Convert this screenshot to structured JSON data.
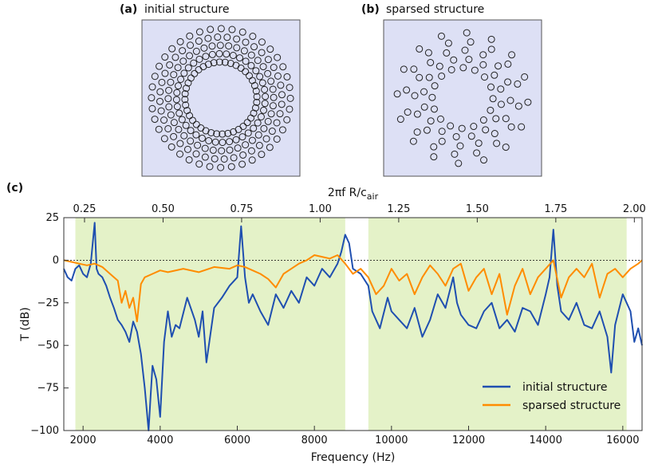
{
  "panels": {
    "a": {
      "label": "(a)",
      "title": "initial structure"
    },
    "b": {
      "label": "(b)",
      "title": "sparsed structure"
    },
    "c": {
      "label": "(c)"
    }
  },
  "colors": {
    "structure_bg": "#dde0f5",
    "bandgap": "#e4f2c8",
    "initial": "#1f4fb0",
    "sparsed": "#ff8c00",
    "zero_line": "#000000"
  },
  "chart_data": {
    "type": "line",
    "title": "",
    "xlabel": "Frequency (Hz)",
    "ylabel": "T (dB)",
    "top_xlabel": "2πf R/c",
    "top_xlabel_sub": "air",
    "xlim": [
      1500,
      16500
    ],
    "ylim": [
      -100,
      25
    ],
    "x_ticks": [
      2000,
      4000,
      6000,
      8000,
      10000,
      12000,
      14000,
      16000
    ],
    "x_tick_labels": [
      "2000",
      "4000",
      "6000",
      "8000",
      "10000",
      "12000",
      "14000",
      "16000"
    ],
    "y_ticks": [
      25,
      0,
      -25,
      -50,
      -75,
      -100
    ],
    "y_tick_labels": [
      "25",
      "0",
      "−25",
      "−50",
      "−75",
      "−100"
    ],
    "top_ticks": [
      0.25,
      0.5,
      0.75,
      1.0,
      1.25,
      1.5,
      1.75,
      2.0
    ],
    "top_tick_labels": [
      "0.25",
      "0.50",
      "0.75",
      "1.00",
      "1.25",
      "1.50",
      "1.75",
      "2.00"
    ],
    "top_axis_freq_per_unit": 8150,
    "shaded_bands": [
      [
        1800,
        8800
      ],
      [
        9400,
        16100
      ]
    ],
    "legend_position": "bottom-right",
    "series": [
      {
        "name": "initial structure",
        "color": "#1f4fb0",
        "x": [
          1500,
          1600,
          1700,
          1800,
          1900,
          2000,
          2100,
          2200,
          2300,
          2350,
          2400,
          2500,
          2600,
          2700,
          2800,
          2900,
          3000,
          3100,
          3200,
          3300,
          3400,
          3500,
          3600,
          3700,
          3750,
          3800,
          3900,
          4000,
          4100,
          4200,
          4300,
          4400,
          4500,
          4700,
          4900,
          5000,
          5100,
          5200,
          5400,
          5600,
          5800,
          6000,
          6100,
          6200,
          6300,
          6400,
          6600,
          6800,
          7000,
          7200,
          7400,
          7600,
          7800,
          8000,
          8200,
          8400,
          8600,
          8700,
          8800,
          8900,
          9000,
          9200,
          9400,
          9500,
          9700,
          9900,
          10000,
          10200,
          10400,
          10600,
          10800,
          11000,
          11200,
          11400,
          11600,
          11700,
          11800,
          12000,
          12200,
          12400,
          12600,
          12800,
          13000,
          13200,
          13400,
          13600,
          13800,
          14000,
          14100,
          14200,
          14300,
          14400,
          14600,
          14800,
          15000,
          15200,
          15400,
          15600,
          15700,
          15800,
          16000,
          16200,
          16300,
          16400,
          16500
        ],
        "y": [
          -5,
          -10,
          -12,
          -5,
          -3,
          -8,
          -10,
          -2,
          22,
          -5,
          -8,
          -10,
          -15,
          -22,
          -28,
          -35,
          -38,
          -42,
          -48,
          -36,
          -42,
          -55,
          -75,
          -100,
          -80,
          -62,
          -70,
          -92,
          -48,
          -30,
          -45,
          -38,
          -40,
          -22,
          -35,
          -45,
          -30,
          -60,
          -28,
          -22,
          -15,
          -10,
          20,
          -10,
          -25,
          -20,
          -30,
          -38,
          -20,
          -28,
          -18,
          -25,
          -10,
          -15,
          -5,
          -10,
          -2,
          5,
          15,
          10,
          -5,
          -8,
          -15,
          -30,
          -40,
          -22,
          -30,
          -35,
          -40,
          -28,
          -45,
          -35,
          -20,
          -28,
          -10,
          -25,
          -32,
          -38,
          -40,
          -30,
          -25,
          -40,
          -35,
          -42,
          -28,
          -30,
          -38,
          -20,
          -10,
          18,
          -15,
          -30,
          -35,
          -25,
          -38,
          -40,
          -30,
          -45,
          -66,
          -38,
          -20,
          -30,
          -48,
          -40,
          -50
        ]
      },
      {
        "name": "sparsed structure",
        "color": "#ff8c00",
        "x": [
          1500,
          1700,
          1900,
          2100,
          2300,
          2500,
          2700,
          2900,
          3000,
          3100,
          3200,
          3300,
          3400,
          3500,
          3600,
          3800,
          4000,
          4200,
          4600,
          5000,
          5400,
          5800,
          6000,
          6200,
          6400,
          6600,
          6800,
          7000,
          7200,
          7400,
          7600,
          7800,
          8000,
          8200,
          8400,
          8600,
          8800,
          9000,
          9200,
          9400,
          9600,
          9800,
          10000,
          10200,
          10400,
          10600,
          10800,
          11000,
          11200,
          11400,
          11600,
          11800,
          12000,
          12200,
          12400,
          12600,
          12800,
          13000,
          13200,
          13400,
          13600,
          13800,
          14000,
          14200,
          14400,
          14600,
          14800,
          15000,
          15200,
          15400,
          15600,
          15800,
          16000,
          16200,
          16400,
          16500
        ],
        "y": [
          0,
          -1,
          -2,
          -3,
          -2,
          -4,
          -8,
          -12,
          -25,
          -18,
          -28,
          -22,
          -36,
          -14,
          -10,
          -8,
          -6,
          -7,
          -5,
          -7,
          -4,
          -5,
          -3,
          -4,
          -6,
          -8,
          -11,
          -16,
          -8,
          -5,
          -2,
          0,
          3,
          2,
          1,
          3,
          -2,
          -8,
          -5,
          -10,
          -20,
          -15,
          -5,
          -12,
          -8,
          -20,
          -10,
          -3,
          -8,
          -15,
          -5,
          -2,
          -18,
          -10,
          -5,
          -20,
          -8,
          -32,
          -15,
          -5,
          -20,
          -10,
          -5,
          0,
          -22,
          -10,
          -5,
          -10,
          -2,
          -22,
          -8,
          -5,
          -10,
          -5,
          -2,
          0
        ]
      }
    ]
  }
}
